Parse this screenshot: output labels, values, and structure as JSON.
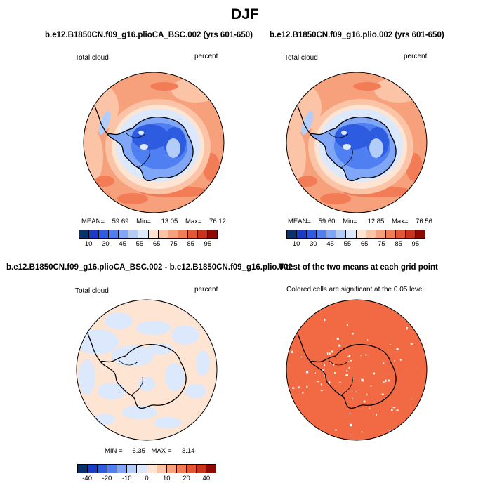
{
  "title": "DJF",
  "colors": {
    "scale": [
      "#08306b",
      "#1a3cc4",
      "#2e5ce0",
      "#4f7ff0",
      "#7fa6f7",
      "#b2cdfa",
      "#dce9fc",
      "#fde4d3",
      "#fbc4a7",
      "#f7a17c",
      "#f27c56",
      "#e25733",
      "#c9331b",
      "#8c0a04"
    ],
    "coast": "#000000",
    "significant": "#f26a43"
  },
  "panels": [
    {
      "title": "b.e12.B1850CN.f09_g16.plioCA_BSC.002 (yrs 601-650)",
      "left_label": "Total cloud",
      "right_label": "percent",
      "stats": {
        "mean_label": "MEAN=",
        "mean": "59.69",
        "min_label": "Min=",
        "min": "13.05",
        "max_label": "Max=",
        "max": "76.12"
      },
      "colorbar_ticks": [
        "10",
        "30",
        "45",
        "55",
        "65",
        "75",
        "85",
        "95"
      ]
    },
    {
      "title": "b.e12.B1850CN.f09_g16.plio.002 (yrs 601-650)",
      "left_label": "Total cloud",
      "right_label": "percent",
      "stats": {
        "mean_label": "MEAN=",
        "mean": "59.60",
        "min_label": "Min=",
        "min": "12.85",
        "max_label": "Max=",
        "max": "76.56"
      },
      "colorbar_ticks": [
        "10",
        "30",
        "45",
        "55",
        "65",
        "75",
        "85",
        "95"
      ]
    },
    {
      "title": "b.e12.B1850CN.f09_g16.plioCA_BSC.002 - b.e12.B1850CN.f09_g16.plio.002",
      "left_label": "Total cloud",
      "right_label": "percent",
      "stats": {
        "min_label": "MIN =",
        "min": "-6.35",
        "max_label": "MAX =",
        "max": "3.14"
      },
      "colorbar_ticks": [
        "-40",
        "-20",
        "-10",
        "0",
        "10",
        "20",
        "40"
      ]
    },
    {
      "title": "T-test of the two means at each grid point",
      "subtitle": "Colored cells are significant at the 0.05 level"
    }
  ],
  "chart_data": [
    {
      "type": "heatmap",
      "projection": "south-polar-stereographic",
      "variable": "Total cloud",
      "units": "percent",
      "season": "DJF",
      "case": "b.e12.B1850CN.f09_g16.plioCA_BSC.002",
      "years": "601-650",
      "mean": 59.69,
      "min": 13.05,
      "max": 76.12,
      "levels": [
        10,
        20,
        30,
        40,
        45,
        50,
        55,
        60,
        65,
        70,
        75,
        80,
        85,
        90,
        95
      ],
      "colorbar_tick_labels": [
        "10",
        "30",
        "45",
        "55",
        "65",
        "75",
        "85",
        "95"
      ]
    },
    {
      "type": "heatmap",
      "projection": "south-polar-stereographic",
      "variable": "Total cloud",
      "units": "percent",
      "season": "DJF",
      "case": "b.e12.B1850CN.f09_g16.plio.002",
      "years": "601-650",
      "mean": 59.6,
      "min": 12.85,
      "max": 76.56,
      "levels": [
        10,
        20,
        30,
        40,
        45,
        50,
        55,
        60,
        65,
        70,
        75,
        80,
        85,
        90,
        95
      ],
      "colorbar_tick_labels": [
        "10",
        "30",
        "45",
        "55",
        "65",
        "75",
        "85",
        "95"
      ]
    },
    {
      "type": "heatmap",
      "projection": "south-polar-stereographic",
      "variable": "Total cloud (difference)",
      "units": "percent",
      "season": "DJF",
      "min": -6.35,
      "max": 3.14,
      "levels": [
        -50,
        -40,
        -30,
        -20,
        -15,
        -10,
        -5,
        0,
        5,
        10,
        15,
        20,
        30,
        40,
        50
      ],
      "colorbar_tick_labels": [
        "-40",
        "-20",
        "-10",
        "0",
        "10",
        "20",
        "40"
      ]
    },
    {
      "type": "heatmap",
      "projection": "south-polar-stereographic",
      "variable": "T-test significance",
      "significance_level": 0.05,
      "note": "Colored cells are significant at the 0.05 level"
    }
  ]
}
